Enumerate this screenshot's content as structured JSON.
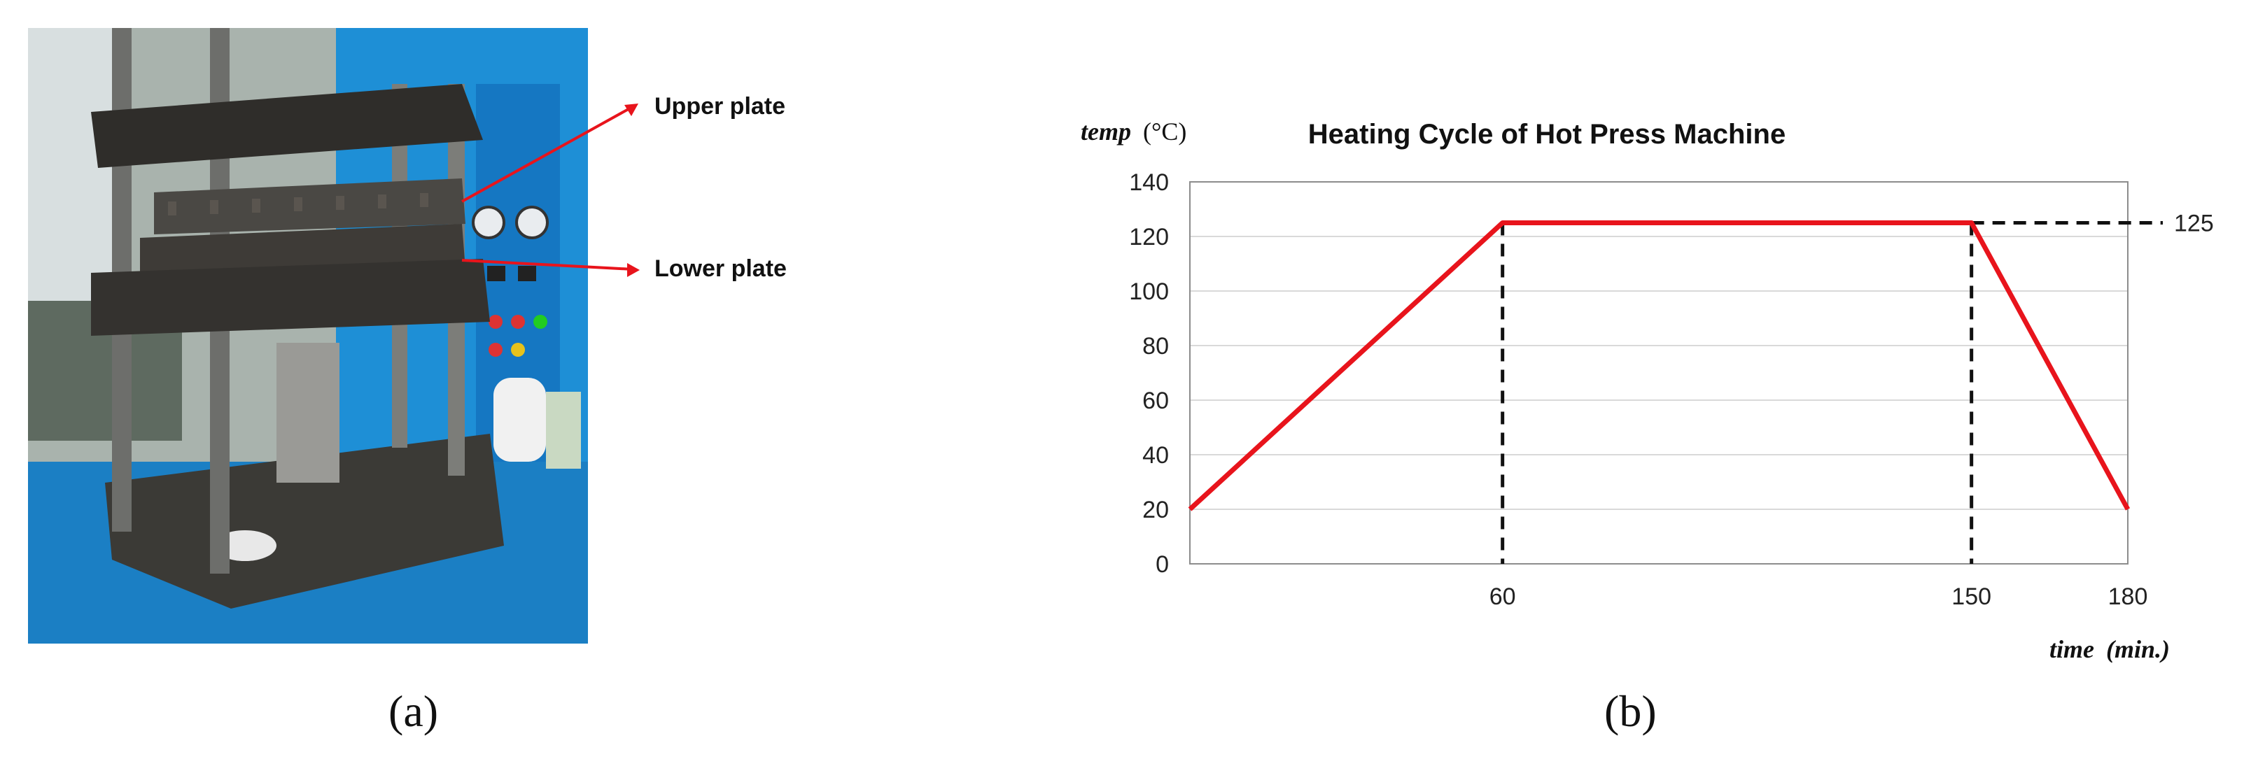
{
  "photo": {
    "callouts": [
      "Upper plate",
      "Lower plate"
    ]
  },
  "captions": {
    "a": "(a)",
    "b": "(b)"
  },
  "colors": {
    "line": "#e8141c",
    "guide": "#111111",
    "grid": "#d9d9d9",
    "axis": "#8c8c8c"
  },
  "chart_data": {
    "type": "line",
    "title": "Heating Cycle of Hot Press Machine",
    "ylabel_main": "temp",
    "ylabel_unit": "(°C)",
    "xlabel_main": "time",
    "xlabel_unit": "(min.)",
    "ylim": [
      0,
      140
    ],
    "xlim": [
      0,
      180
    ],
    "yticks": [
      0,
      20,
      40,
      60,
      80,
      100,
      120,
      140
    ],
    "xticks": [
      60,
      150,
      180
    ],
    "grid": true,
    "series": [
      {
        "x": [
          0,
          60,
          150,
          180
        ],
        "y": [
          20,
          125,
          125,
          20
        ]
      }
    ],
    "annotations": {
      "dashed_vertical_x": [
        60,
        150
      ],
      "dashed_horizontal_y": 125,
      "right_label": "125"
    }
  }
}
